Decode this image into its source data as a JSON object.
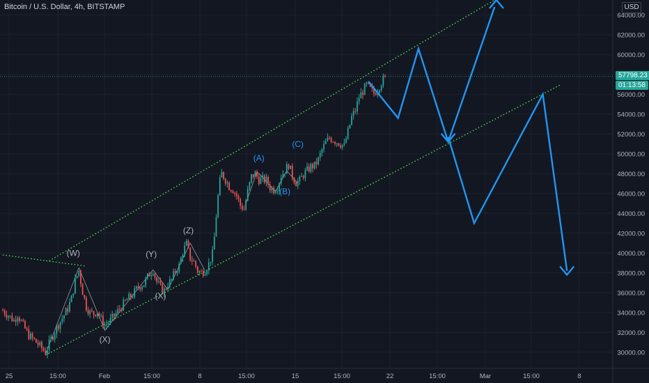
{
  "header": {
    "title": "Bitcoin / U.S. Dollar, 4h, BITSTAMP",
    "currency": "USD"
  },
  "colors": {
    "background": "#131722",
    "up": "#26a69a",
    "down": "#ef5350",
    "projection": "#2196f3",
    "channel": "#4ee44e",
    "wave": "#b2b5be"
  },
  "last_price": {
    "value": "57798.23",
    "countdown": "01:13:58"
  },
  "chart_data": {
    "type": "candlestick",
    "title": "Bitcoin / U.S. Dollar, 4h, BITSTAMP",
    "ylim": [
      29000,
      65500
    ],
    "y_ticks": [
      "30000.00",
      "32000.00",
      "34000.00",
      "36000.00",
      "38000.00",
      "40000.00",
      "42000.00",
      "44000.00",
      "46000.00",
      "48000.00",
      "50000.00",
      "52000.00",
      "54000.00",
      "56000.00",
      "58000.00",
      "60000.00",
      "62000.00",
      "64000.00"
    ],
    "x_ticks": [
      "25",
      "15:00",
      "Feb",
      "15:00",
      "8",
      "15:00",
      "15",
      "15:00",
      "22",
      "15:00",
      "Mar",
      "15:00",
      "8"
    ],
    "price_path": [
      [
        0,
        34200
      ],
      [
        3,
        33700
      ],
      [
        6,
        33200
      ],
      [
        8,
        33800
      ],
      [
        11,
        32700
      ],
      [
        14,
        31700
      ],
      [
        17,
        31200
      ],
      [
        20,
        30600
      ],
      [
        23,
        30000
      ],
      [
        26,
        31300
      ],
      [
        29,
        32500
      ],
      [
        32,
        33400
      ],
      [
        35,
        34400
      ],
      [
        37,
        35400
      ],
      [
        39,
        37200
      ],
      [
        41,
        38200
      ],
      [
        43,
        36100
      ],
      [
        45,
        34600
      ],
      [
        47,
        34000
      ],
      [
        49,
        33900
      ],
      [
        51,
        34100
      ],
      [
        53,
        33300
      ],
      [
        55,
        32700
      ],
      [
        58,
        33200
      ],
      [
        61,
        33900
      ],
      [
        64,
        34600
      ],
      [
        67,
        35300
      ],
      [
        70,
        35800
      ],
      [
        73,
        36600
      ],
      [
        76,
        36900
      ],
      [
        79,
        37900
      ],
      [
        81,
        38300
      ],
      [
        83,
        37100
      ],
      [
        85,
        36500
      ],
      [
        87,
        36200
      ],
      [
        89,
        36900
      ],
      [
        91,
        37300
      ],
      [
        93,
        38200
      ],
      [
        95,
        38700
      ],
      [
        97,
        40100
      ],
      [
        99,
        40900
      ],
      [
        101,
        39500
      ],
      [
        103,
        39100
      ],
      [
        105,
        38200
      ],
      [
        107,
        38000
      ],
      [
        109,
        38300
      ],
      [
        111,
        38900
      ],
      [
        113,
        39900
      ],
      [
        114,
        41600
      ],
      [
        115,
        43800
      ],
      [
        116,
        45700
      ],
      [
        117,
        47200
      ],
      [
        118,
        48000
      ],
      [
        120,
        47400
      ],
      [
        122,
        46700
      ],
      [
        124,
        46400
      ],
      [
        126,
        45800
      ],
      [
        128,
        44800
      ],
      [
        130,
        44400
      ],
      [
        132,
        46200
      ],
      [
        134,
        47700
      ],
      [
        136,
        48000
      ],
      [
        138,
        47400
      ],
      [
        140,
        47400
      ],
      [
        142,
        47300
      ],
      [
        144,
        46600
      ],
      [
        146,
        46400
      ],
      [
        148,
        46700
      ],
      [
        150,
        47800
      ],
      [
        152,
        48300
      ],
      [
        154,
        48900
      ],
      [
        156,
        47800
      ],
      [
        158,
        47100
      ],
      [
        160,
        47300
      ],
      [
        162,
        47900
      ],
      [
        164,
        48300
      ],
      [
        166,
        48700
      ],
      [
        168,
        48800
      ],
      [
        170,
        49400
      ],
      [
        172,
        50400
      ],
      [
        174,
        51100
      ],
      [
        176,
        51600
      ],
      [
        178,
        51400
      ],
      [
        180,
        51200
      ],
      [
        182,
        51000
      ],
      [
        184,
        50800
      ],
      [
        186,
        52200
      ],
      [
        188,
        53700
      ],
      [
        190,
        54400
      ],
      [
        192,
        55700
      ],
      [
        194,
        56300
      ],
      [
        196,
        56900
      ],
      [
        198,
        56500
      ],
      [
        200,
        56100
      ],
      [
        202,
        56500
      ],
      [
        204,
        57200
      ],
      [
        206,
        57800
      ]
    ],
    "channel_upper": [
      [
        25,
        39200
      ],
      [
        265,
        65500
      ]
    ],
    "channel_lower": [
      [
        23,
        29700
      ],
      [
        301,
        57000
      ]
    ],
    "left_trendline": [
      [
        0,
        39800
      ],
      [
        44,
        38700
      ]
    ],
    "wave_lines": [
      [
        [
          23,
          29800
        ],
        [
          41,
          38500
        ],
        [
          55,
          32200
        ],
        [
          81,
          38300
        ],
        [
          89,
          36300
        ],
        [
          101,
          41000
        ],
        [
          109,
          38200
        ]
      ],
      [
        [
          131,
          45000
        ],
        [
          137,
          48200
        ],
        [
          147,
          46200
        ],
        [
          153,
          48300
        ],
        [
          159,
          47000
        ]
      ]
    ],
    "projection": {
      "series": [
        [
          [
            197,
            57300
          ],
          [
            213,
            53600
          ],
          [
            224,
            60600
          ],
          [
            240,
            51200
          ]
        ],
        [
          [
            240,
            51200
          ],
          [
            265,
            64800
          ]
        ],
        [
          [
            240,
            51700
          ],
          [
            254,
            43000
          ],
          [
            291,
            56000
          ],
          [
            304,
            38200
          ]
        ]
      ],
      "arrows": [
        {
          "tip": [
            240,
            51200
          ],
          "direction": "down"
        },
        {
          "tip": [
            266,
            65500
          ],
          "direction": "up"
        },
        {
          "tip": [
            304,
            37800
          ],
          "direction": "down"
        }
      ]
    },
    "annotations": [
      {
        "text": "(W)",
        "x": 38,
        "y": 39700,
        "color": "#b2b5be"
      },
      {
        "text": "(X)",
        "x": 55,
        "y": 31000,
        "color": "#b2b5be"
      },
      {
        "text": "(Y)",
        "x": 80,
        "y": 39600,
        "color": "#b2b5be"
      },
      {
        "text": "(X)",
        "x": 85,
        "y": 35400,
        "color": "#b2b5be"
      },
      {
        "text": "(Z)",
        "x": 100,
        "y": 42000,
        "color": "#b2b5be"
      },
      {
        "text": "(A)",
        "x": 138,
        "y": 49300,
        "color": "#2196f3"
      },
      {
        "text": "(B)",
        "x": 152,
        "y": 45900,
        "color": "#2196f3"
      },
      {
        "text": "(C)",
        "x": 159,
        "y": 50700,
        "color": "#2196f3"
      }
    ]
  }
}
